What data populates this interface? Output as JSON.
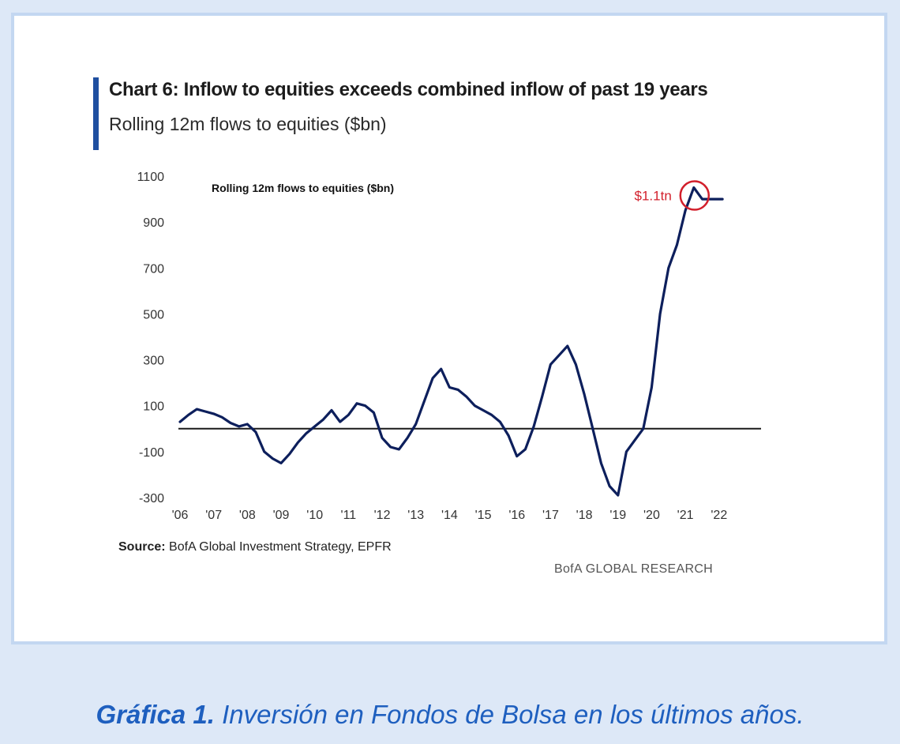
{
  "chart_data": {
    "type": "line",
    "title": "Chart 6: Inflow to equities exceeds combined inflow of past 19 years",
    "subtitle": "Rolling 12m flows to equities ($bn)",
    "inner_label": "Rolling 12m flows to equities ($bn)",
    "annotation": "$1.1tn",
    "x_tick_labels": [
      "'06",
      "'07",
      "'08",
      "'09",
      "'10",
      "'11",
      "'12",
      "'13",
      "'14",
      "'15",
      "'16",
      "'17",
      "'18",
      "'19",
      "'20",
      "'21",
      "'22"
    ],
    "y_ticks": [
      1100,
      900,
      700,
      500,
      300,
      100,
      -100,
      -300
    ],
    "ylim": [
      -300,
      1100
    ],
    "xlim": [
      2006,
      2023.2
    ],
    "grid": false,
    "reference_line": 0,
    "line_color": "#0d1f5c",
    "annotation_color": "#d21f2b",
    "series": [
      {
        "x": [
          2006.0,
          2006.25,
          2006.5,
          2006.75,
          2007.0,
          2007.25,
          2007.5,
          2007.75,
          2008.0,
          2008.25,
          2008.5,
          2008.75,
          2009.0,
          2009.25,
          2009.5,
          2009.75,
          2010.0,
          2010.25,
          2010.5,
          2010.75,
          2011.0,
          2011.25,
          2011.5,
          2011.75,
          2012.0,
          2012.25,
          2012.5,
          2012.75,
          2013.0,
          2013.25,
          2013.5,
          2013.75,
          2014.0,
          2014.25,
          2014.5,
          2014.75,
          2015.0,
          2015.25,
          2015.5,
          2015.75,
          2016.0,
          2016.25,
          2016.5,
          2016.75,
          2017.0,
          2017.25,
          2017.5,
          2017.75,
          2018.0,
          2018.25,
          2018.5,
          2018.75,
          2019.0,
          2019.25,
          2019.5,
          2019.75,
          2020.0,
          2020.25,
          2020.5,
          2020.75,
          2021.0,
          2021.25,
          2021.5,
          2021.75,
          2022.0,
          2022.1
        ],
        "values": [
          30,
          60,
          85,
          75,
          65,
          50,
          25,
          10,
          20,
          -15,
          -100,
          -130,
          -150,
          -110,
          -60,
          -20,
          10,
          40,
          80,
          30,
          60,
          110,
          100,
          70,
          -40,
          -80,
          -90,
          -40,
          20,
          120,
          220,
          260,
          180,
          170,
          140,
          100,
          80,
          60,
          30,
          -30,
          -120,
          -90,
          10,
          140,
          280,
          320,
          360,
          280,
          150,
          0,
          -150,
          -250,
          -290,
          -100,
          -50,
          0,
          180,
          500,
          700,
          800,
          950,
          1050,
          1000,
          1000,
          1000,
          1000
        ]
      }
    ],
    "series_values_note": ""
  },
  "source_label": "Source:",
  "source_text": "BofA Global Investment Strategy, EPFR",
  "brand": "BofA GLOBAL RESEARCH",
  "caption_lead": "Gráfica 1.",
  "caption_text": "Inversión en Fondos de Bolsa en los últimos años."
}
